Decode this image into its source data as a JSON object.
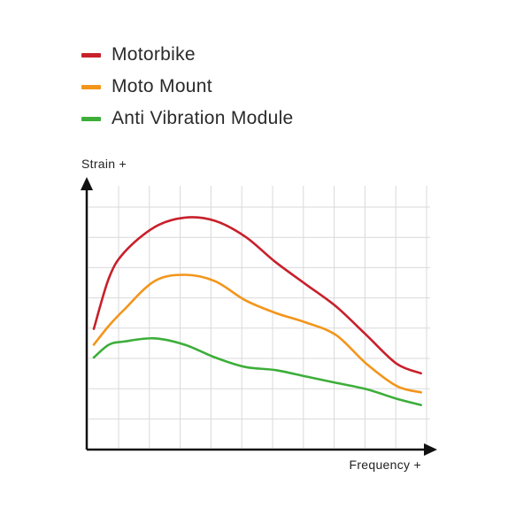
{
  "chart_data": {
    "type": "line",
    "xlabel": "Frequency +",
    "ylabel": "Strain +",
    "xlim": [
      0,
      11.1
    ],
    "ylim": [
      0,
      8.3
    ],
    "grid": true,
    "legend_position": "top-left",
    "series": [
      {
        "name": "Motorbike",
        "color": "#c8202b",
        "points": [
          [
            0.0,
            3.8
          ],
          [
            0.5,
            5.4
          ],
          [
            1.0,
            6.2
          ],
          [
            2.0,
            7.0
          ],
          [
            3.0,
            7.3
          ],
          [
            4.0,
            7.2
          ],
          [
            5.0,
            6.7
          ],
          [
            6.0,
            5.9
          ],
          [
            7.0,
            5.2
          ],
          [
            8.0,
            4.5
          ],
          [
            9.0,
            3.6
          ],
          [
            10.0,
            2.7
          ],
          [
            10.8,
            2.4
          ]
        ]
      },
      {
        "name": "Moto Mount",
        "color": "#f3951a",
        "points": [
          [
            0.0,
            3.3
          ],
          [
            0.5,
            3.9
          ],
          [
            1.0,
            4.4
          ],
          [
            2.0,
            5.3
          ],
          [
            3.0,
            5.5
          ],
          [
            4.0,
            5.3
          ],
          [
            5.0,
            4.7
          ],
          [
            6.0,
            4.3
          ],
          [
            7.0,
            4.0
          ],
          [
            8.0,
            3.6
          ],
          [
            9.0,
            2.7
          ],
          [
            10.0,
            2.0
          ],
          [
            10.8,
            1.8
          ]
        ]
      },
      {
        "name": "Anti Vibration Module",
        "color": "#3dae3a",
        "points": [
          [
            0.0,
            2.9
          ],
          [
            0.5,
            3.3
          ],
          [
            1.0,
            3.4
          ],
          [
            2.0,
            3.5
          ],
          [
            3.0,
            3.3
          ],
          [
            4.0,
            2.9
          ],
          [
            5.0,
            2.6
          ],
          [
            6.0,
            2.5
          ],
          [
            7.0,
            2.3
          ],
          [
            8.0,
            2.1
          ],
          [
            9.0,
            1.9
          ],
          [
            10.0,
            1.6
          ],
          [
            10.8,
            1.4
          ]
        ]
      }
    ]
  }
}
